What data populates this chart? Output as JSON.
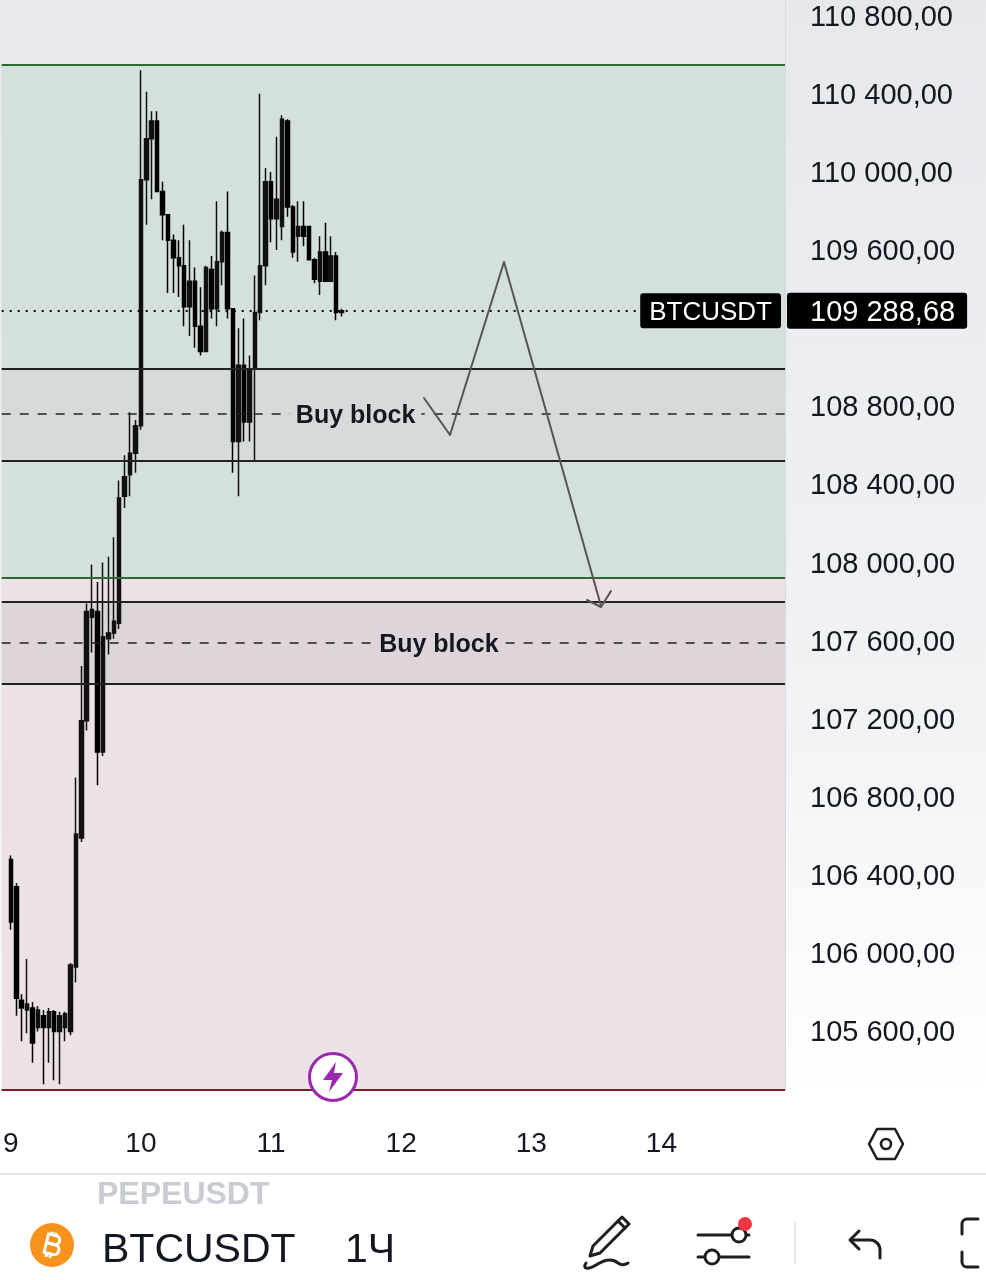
{
  "chart_data": {
    "type": "candlestick",
    "title": "BTCUSDT",
    "subtitle": "1Ч",
    "x": [
      9,
      9.042,
      9.083,
      9.125,
      9.167,
      9.208,
      9.25,
      9.292,
      9.333,
      9.375,
      9.417,
      9.458,
      9.5,
      9.542,
      9.583,
      9.625,
      9.667,
      9.708,
      9.75,
      9.792,
      9.833,
      9.875,
      9.917,
      9.958,
      10,
      10.042,
      10.083,
      10.125,
      10.167,
      10.208,
      10.25,
      10.292,
      10.333,
      10.375,
      10.417,
      10.458,
      10.5,
      10.542,
      10.583,
      10.625,
      10.667,
      10.708,
      10.75,
      10.792,
      10.833,
      10.875,
      10.917,
      10.958,
      11,
      11.042,
      11.083,
      11.125,
      11.167,
      11.208,
      11.25,
      11.292,
      11.333,
      11.375,
      11.417,
      11.458,
      11.5,
      11.542
    ],
    "ohlc": [
      [
        106480,
        106500,
        106120,
        106160
      ],
      [
        106340,
        106360,
        105680,
        105770
      ],
      [
        105760,
        105790,
        105550,
        105720
      ],
      [
        105710,
        105970,
        105590,
        105740
      ],
      [
        105720,
        105750,
        105440,
        105540
      ],
      [
        105620,
        105730,
        105600,
        105710
      ],
      [
        105680,
        105710,
        105330,
        105620
      ],
      [
        105620,
        105720,
        105440,
        105700
      ],
      [
        105700,
        105710,
        105350,
        105600
      ],
      [
        105600,
        105700,
        105330,
        105680
      ],
      [
        105620,
        105700,
        105550,
        105690
      ],
      [
        105600,
        105950,
        105580,
        105940
      ],
      [
        105930,
        106900,
        105850,
        106610
      ],
      [
        106590,
        107470,
        106570,
        107190
      ],
      [
        107190,
        107790,
        107140,
        107750
      ],
      [
        107720,
        107990,
        107540,
        107760
      ],
      [
        107750,
        107900,
        106860,
        107030
      ],
      [
        107030,
        108000,
        107010,
        107620
      ],
      [
        107610,
        108030,
        107530,
        107640
      ],
      [
        107640,
        108130,
        107610,
        107700
      ],
      [
        107690,
        108420,
        107660,
        108330
      ],
      [
        108340,
        108550,
        108280,
        108440
      ],
      [
        108450,
        108770,
        108340,
        108560
      ],
      [
        108560,
        108730,
        108460,
        108700
      ],
      [
        108700,
        110520,
        108680,
        109960
      ],
      [
        109960,
        110410,
        109730,
        110170
      ],
      [
        110170,
        110310,
        109860,
        110260
      ],
      [
        110260,
        110310,
        109900,
        109900
      ],
      [
        109900,
        109950,
        109650,
        109780
      ],
      [
        109780,
        109780,
        109380,
        109650
      ],
      [
        109650,
        109680,
        109380,
        109560
      ],
      [
        109560,
        109650,
        109360,
        109520
      ],
      [
        109520,
        109730,
        109210,
        109310
      ],
      [
        109310,
        109650,
        109160,
        109440
      ],
      [
        109440,
        109510,
        109100,
        109210
      ],
      [
        109210,
        109410,
        109060,
        109080
      ],
      [
        109080,
        109520,
        109080,
        109510
      ],
      [
        109500,
        109570,
        109250,
        109300
      ],
      [
        109300,
        109850,
        109210,
        109540
      ],
      [
        109540,
        109700,
        109420,
        109690
      ],
      [
        109690,
        109900,
        109250,
        109300
      ],
      [
        109300,
        109300,
        108460,
        108620
      ],
      [
        108620,
        109200,
        108340,
        109010
      ],
      [
        109010,
        109250,
        108620,
        108720
      ],
      [
        108720,
        109060,
        108620,
        108990
      ],
      [
        108990,
        109470,
        108520,
        109280
      ],
      [
        109280,
        110400,
        109240,
        109520
      ],
      [
        109520,
        110020,
        109420,
        109950
      ],
      [
        109950,
        110000,
        109640,
        109760
      ],
      [
        109760,
        110180,
        109600,
        109860
      ],
      [
        109720,
        110290,
        109650,
        110270
      ],
      [
        110260,
        110270,
        109770,
        109820
      ],
      [
        109820,
        109830,
        109560,
        109590
      ],
      [
        109670,
        109850,
        109540,
        109720
      ],
      [
        109720,
        109850,
        109620,
        109670
      ],
      [
        109720,
        109720,
        109550,
        109550
      ],
      [
        109550,
        109560,
        109430,
        109450
      ],
      [
        109440,
        109670,
        109370,
        109590
      ],
      [
        109590,
        109740,
        109440,
        109440
      ],
      [
        109440,
        109670,
        109440,
        109570
      ],
      [
        109570,
        109590,
        109240,
        109280
      ],
      [
        109280,
        109300,
        109260,
        109288.68
      ]
    ],
    "colors": [
      "#000000",
      "#000000",
      "#000000",
      "#111111",
      "#000000",
      "#111111",
      "#000000",
      "#111111",
      "#000000",
      "#111111",
      "#111111",
      "#111111",
      "#111111",
      "#111111",
      "#111111",
      "#111111",
      "#000000",
      "#111111",
      "#111111",
      "#111111",
      "#111111",
      "#111111",
      "#111111",
      "#111111",
      "#111111",
      "#111111",
      "#111111",
      "#000000",
      "#000000",
      "#000000",
      "#000000",
      "#000000",
      "#000000",
      "#111111",
      "#000000",
      "#000000",
      "#111111",
      "#000000",
      "#111111",
      "#111111",
      "#000000",
      "#000000",
      "#111111",
      "#000000",
      "#111111",
      "#111111",
      "#111111",
      "#111111",
      "#000000",
      "#111111",
      "#111111",
      "#000000",
      "#000000",
      "#111111",
      "#000000",
      "#000000",
      "#000000",
      "#111111",
      "#000000",
      "#111111",
      "#000000",
      "#111111"
    ],
    "xlim": [
      8.93,
      14.95
    ],
    "xticks": [
      9,
      10,
      11,
      12,
      13,
      14
    ],
    "ylim": [
      105300,
      110880
    ],
    "yticks": [
      {
        "value": 105600,
        "label": "105 600,00"
      },
      {
        "value": 106000,
        "label": "106 000,00"
      },
      {
        "value": 106400,
        "label": "106 400,00"
      },
      {
        "value": 106800,
        "label": "106 800,00"
      },
      {
        "value": 107200,
        "label": "107 200,00"
      },
      {
        "value": 107600,
        "label": "107 600,00"
      },
      {
        "value": 108000,
        "label": "108 000,00"
      },
      {
        "value": 108400,
        "label": "108 400,00"
      },
      {
        "value": 108800,
        "label": "108 800,00"
      },
      {
        "value": 109600,
        "label": "109 600,00"
      },
      {
        "value": 110000,
        "label": "110 000,00"
      },
      {
        "value": 110400,
        "label": "110 400,00"
      },
      {
        "value": 110800,
        "label": "110 800,00"
      }
    ],
    "grid": false,
    "bands": [
      {
        "axis": "y",
        "from": 107920,
        "to": 110550,
        "color": "#d4e0dc"
      },
      {
        "axis": "y",
        "from": 105300,
        "to": 107920,
        "color": "#ece2e5"
      },
      {
        "axis": "y",
        "from": 108520,
        "to": 108990,
        "color": "#d6dad9"
      },
      {
        "axis": "y",
        "from": 107380,
        "to": 107800,
        "color": "#ddd5d9"
      }
    ],
    "ref_lines": [
      {
        "axis": "y",
        "value": 110550,
        "color": "#2e6b34"
      },
      {
        "axis": "y",
        "value": 107920,
        "color": "#2e6b34"
      },
      {
        "axis": "y",
        "value": 105300,
        "color": "#7a1c2a"
      },
      {
        "axis": "y",
        "value": 108990,
        "color": "#222222"
      },
      {
        "axis": "y",
        "value": 108520,
        "color": "#222222"
      },
      {
        "axis": "y",
        "value": 107800,
        "color": "#222222"
      },
      {
        "axis": "y",
        "value": 107380,
        "color": "#222222"
      },
      {
        "axis": "y",
        "value": 108760,
        "line_style": "dashed",
        "color": "#222222"
      },
      {
        "axis": "y",
        "value": 107590,
        "line_style": "dashed",
        "color": "#222222"
      },
      {
        "axis": "y",
        "value": 109288.68,
        "label": "BTCUSDT",
        "line_style": "dotted",
        "color": "#000000"
      }
    ],
    "annotations": [
      {
        "text": "Buy block",
        "x": 11.65,
        "y": 108760
      },
      {
        "text": "Buy block",
        "x": 12.29,
        "y": 107590
      },
      "109 288,68",
      "PEPEUSDT"
    ]
  }
}
